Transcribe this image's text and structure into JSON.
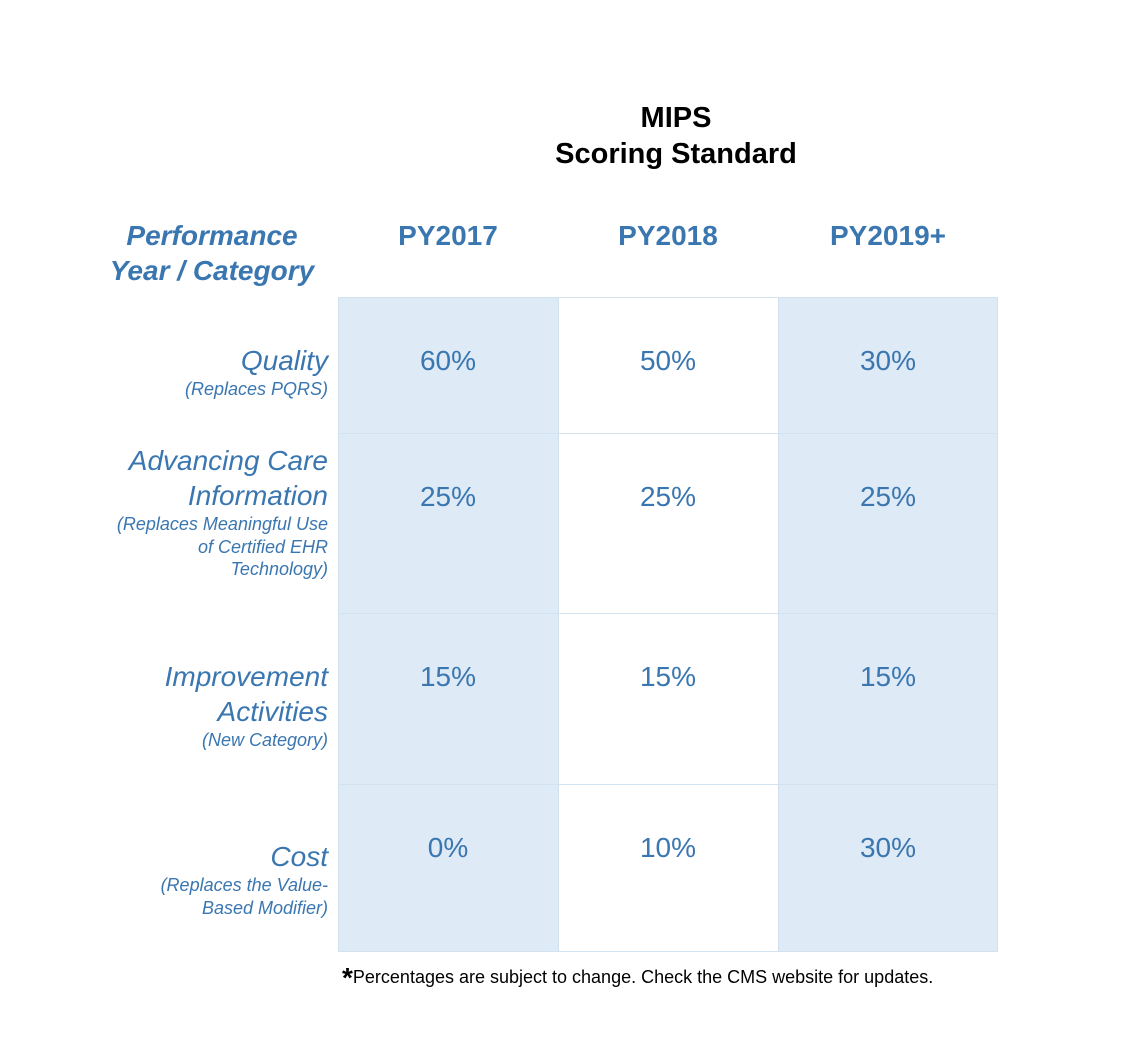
{
  "title": {
    "line1": "MIPS",
    "line2": "Scoring Standard"
  },
  "corner_header": {
    "line1": "Performance",
    "line2": "Year / Category"
  },
  "columns": [
    "PY2017",
    "PY2018",
    "PY2019+"
  ],
  "rows": [
    {
      "name_lines": [
        "Quality"
      ],
      "sub_lines": [
        "(Replaces PQRS)"
      ],
      "values": [
        "60%",
        "50%",
        "30%"
      ]
    },
    {
      "name_lines": [
        "Advancing Care",
        "Information"
      ],
      "sub_lines": [
        "(Replaces Meaningful Use",
        "of Certified EHR",
        "Technology)"
      ],
      "values": [
        "25%",
        "25%",
        "25%"
      ]
    },
    {
      "name_lines": [
        "Improvement",
        "Activities"
      ],
      "sub_lines": [
        "(New Category)"
      ],
      "values": [
        "15%",
        "15%",
        "15%"
      ]
    },
    {
      "name_lines": [
        "Cost"
      ],
      "sub_lines": [
        "(Replaces the Value-",
        "Based Modifier)"
      ],
      "values": [
        "0%",
        "10%",
        "30%"
      ]
    }
  ],
  "footnote": {
    "marker": "*",
    "text": "Percentages are subject to change. Check the CMS website for updates."
  },
  "colors": {
    "text_blue": "#3a76b0",
    "shaded_column": "#deeaf6",
    "grid_line": "#d2e2ef"
  },
  "chart_data": {
    "type": "table",
    "title": "MIPS Scoring Standard",
    "columns": [
      "PY2017",
      "PY2018",
      "PY2019+"
    ],
    "rows": [
      {
        "category": "Quality",
        "note": "(Replaces PQRS)",
        "values": [
          60,
          50,
          30
        ]
      },
      {
        "category": "Advancing Care Information",
        "note": "(Replaces Meaningful Use of Certified EHR Technology)",
        "values": [
          25,
          25,
          25
        ]
      },
      {
        "category": "Improvement Activities",
        "note": "(New Category)",
        "values": [
          15,
          15,
          15
        ]
      },
      {
        "category": "Cost",
        "note": "(Replaces the Value-Based Modifier)",
        "values": [
          0,
          10,
          30
        ]
      }
    ],
    "unit": "%"
  }
}
